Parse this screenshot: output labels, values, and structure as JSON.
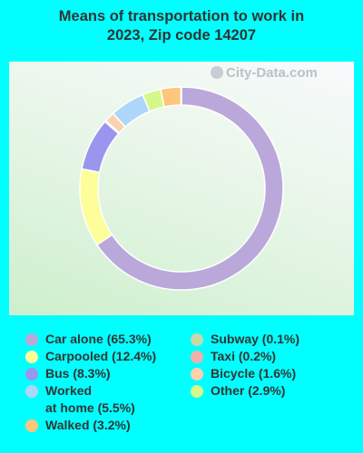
{
  "header": {
    "title_line1": "Means of transportation to work in",
    "title_line2": "2023, Zip code 14207"
  },
  "watermark": {
    "text": "City-Data.com"
  },
  "chart_data": {
    "type": "pie",
    "style": "donut",
    "title": "Means of transportation to work in 2023, Zip code 14207",
    "legend_position": "bottom",
    "slices": [
      {
        "name": "Car alone",
        "value": 65.3,
        "label": "Car alone (65.3%)",
        "color": "#bba8da"
      },
      {
        "name": "Carpooled",
        "value": 12.4,
        "label": "Carpooled (12.4%)",
        "color": "#fdfe9a"
      },
      {
        "name": "Bus",
        "value": 8.3,
        "label": "Bus (8.3%)",
        "color": "#9a96ee"
      },
      {
        "name": "Subway",
        "value": 0.1,
        "label": "Subway (0.1%)",
        "color": "#c9d8a8"
      },
      {
        "name": "Taxi",
        "value": 0.2,
        "label": "Taxi (0.2%)",
        "color": "#f2b0a8"
      },
      {
        "name": "Bicycle",
        "value": 1.6,
        "label": "Bicycle (1.6%)",
        "color": "#fcd1b0"
      },
      {
        "name": "Worked at home",
        "value": 5.5,
        "label_line1": "Worked",
        "label_line2": "at home (5.5%)",
        "color": "#aed6f8"
      },
      {
        "name": "Other",
        "value": 2.9,
        "label": "Other (2.9%)",
        "color": "#d4f98a"
      },
      {
        "name": "Walked",
        "value": 3.2,
        "label": "Walked (3.2%)",
        "color": "#fdc67a"
      }
    ]
  }
}
